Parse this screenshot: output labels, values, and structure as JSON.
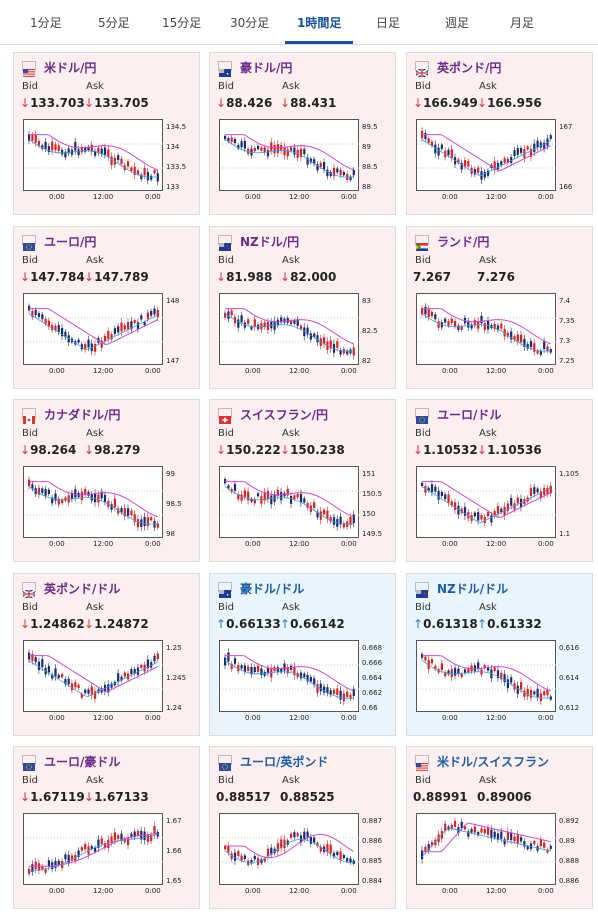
{
  "tabs": [
    {
      "label": "1分足"
    },
    {
      "label": "5分足"
    },
    {
      "label": "15分足"
    },
    {
      "label": "30分足"
    },
    {
      "label": "1時間足",
      "active": true
    },
    {
      "label": "日足"
    },
    {
      "label": "週足"
    },
    {
      "label": "月足"
    }
  ],
  "labels": {
    "bid": "Bid",
    "ask": "Ask"
  },
  "cards": [
    {
      "pair": "米ドル/円",
      "flag": "us",
      "dir": "down",
      "bid": "133.703",
      "ask": "133.705",
      "arrow": "↓",
      "yticks": [
        "134.5",
        "134",
        "133.5",
        "133"
      ],
      "xticks": [
        "0:00",
        "12:00",
        "0:00"
      ],
      "trend": "down"
    },
    {
      "pair": "豪ドル/円",
      "flag": "au",
      "dir": "down",
      "bid": "88.426",
      "ask": "88.431",
      "arrow": "↓",
      "yticks": [
        "89.5",
        "89",
        "88.5",
        "88"
      ],
      "xticks": [
        "0:00",
        "12:00",
        "0:00"
      ],
      "trend": "down"
    },
    {
      "pair": "英ポンド/円",
      "flag": "uk",
      "dir": "down",
      "bid": "166.949",
      "ask": "166.956",
      "arrow": "↓",
      "yticks": [
        "167",
        "166"
      ],
      "xticks": [
        "0:00",
        "12:00",
        "0:00"
      ],
      "trend": "vee"
    },
    {
      "pair": "ユーロ/円",
      "flag": "eu",
      "dir": "down",
      "bid": "147.784",
      "ask": "147.789",
      "arrow": "↓",
      "yticks": [
        "148",
        "147"
      ],
      "xticks": [
        "0:00",
        "12:00",
        "0:00"
      ],
      "trend": "vee"
    },
    {
      "pair": "NZドル/円",
      "flag": "nz",
      "dir": "down",
      "bid": "81.988",
      "ask": "82.000",
      "arrow": "↓",
      "yticks": [
        "83",
        "82.5",
        "82"
      ],
      "xticks": [
        "0:00",
        "12:00",
        "0:00"
      ],
      "trend": "down"
    },
    {
      "pair": "ランド/円",
      "flag": "za",
      "dir": "none",
      "bid": "7.267",
      "ask": "7.276",
      "arrow": "",
      "yticks": [
        "7.4",
        "7.35",
        "7.3",
        "7.25"
      ],
      "xticks": [
        "0:00",
        "12:00",
        "0:00"
      ],
      "trend": "down"
    },
    {
      "pair": "カナダドル/円",
      "flag": "ca",
      "dir": "down",
      "bid": "98.264",
      "ask": "98.279",
      "arrow": "↓",
      "yticks": [
        "99",
        "98.5",
        "98"
      ],
      "xticks": [
        "0:00",
        "12:00",
        "0:00"
      ],
      "trend": "down"
    },
    {
      "pair": "スイスフラン/円",
      "flag": "ch",
      "dir": "down",
      "bid": "150.222",
      "ask": "150.238",
      "arrow": "↓",
      "yticks": [
        "151",
        "150.5",
        "150",
        "149.5"
      ],
      "xticks": [
        "0:00",
        "12:00",
        "0:00"
      ],
      "trend": "down"
    },
    {
      "pair": "ユーロ/ドル",
      "flag": "eu",
      "dir": "down",
      "bid": "1.10532",
      "ask": "1.10536",
      "arrow": "↓",
      "yticks": [
        "1.105",
        "1.1"
      ],
      "xticks": [
        "0:00",
        "12:00",
        "0:00"
      ],
      "trend": "vee"
    },
    {
      "pair": "英ポンド/ドル",
      "flag": "uk",
      "dir": "down",
      "bid": "1.24862",
      "ask": "1.24872",
      "arrow": "↓",
      "yticks": [
        "1.25",
        "1.245",
        "1.24"
      ],
      "xticks": [
        "0:00",
        "12:00",
        "0:00"
      ],
      "trend": "vee"
    },
    {
      "pair": "豪ドル/ドル",
      "flag": "au",
      "dir": "up",
      "bid": "0.66133",
      "ask": "0.66142",
      "arrow": "↑",
      "yticks": [
        "0.668",
        "0.666",
        "0.664",
        "0.662",
        "0.66"
      ],
      "xticks": [
        "0:00",
        "12:00",
        "0:00"
      ],
      "trend": "down"
    },
    {
      "pair": "NZドル/ドル",
      "flag": "nz",
      "dir": "up",
      "bid": "0.61318",
      "ask": "0.61332",
      "arrow": "↑",
      "yticks": [
        "0.616",
        "0.614",
        "0.612"
      ],
      "xticks": [
        "0:00",
        "12:00",
        "0:00"
      ],
      "trend": "down"
    },
    {
      "pair": "ユーロ/豪ドル",
      "flag": "eu",
      "dir": "down",
      "bid": "1.67119",
      "ask": "1.67133",
      "arrow": "↓",
      "yticks": [
        "1.67",
        "1.66",
        "1.65"
      ],
      "xticks": [
        "0:00",
        "12:00",
        "0:00"
      ],
      "trend": "up"
    },
    {
      "pair": "ユーロ/英ポンド",
      "flag": "eu",
      "dir": "none",
      "bid": "0.88517",
      "ask": "0.88525",
      "arrow": "",
      "yticks": [
        "0.887",
        "0.886",
        "0.885",
        "0.884"
      ],
      "xticks": [
        "0:00",
        "12:00",
        "0:00"
      ],
      "trend": "flat"
    },
    {
      "pair": "米ドル/スイスフラン",
      "flag": "us",
      "dir": "none",
      "bid": "0.88991",
      "ask": "0.89006",
      "arrow": "",
      "yticks": [
        "0.892",
        "0.89",
        "0.888",
        "0.886"
      ],
      "xticks": [
        "0:00",
        "12:00",
        "0:00"
      ],
      "trend": "peak"
    }
  ]
}
